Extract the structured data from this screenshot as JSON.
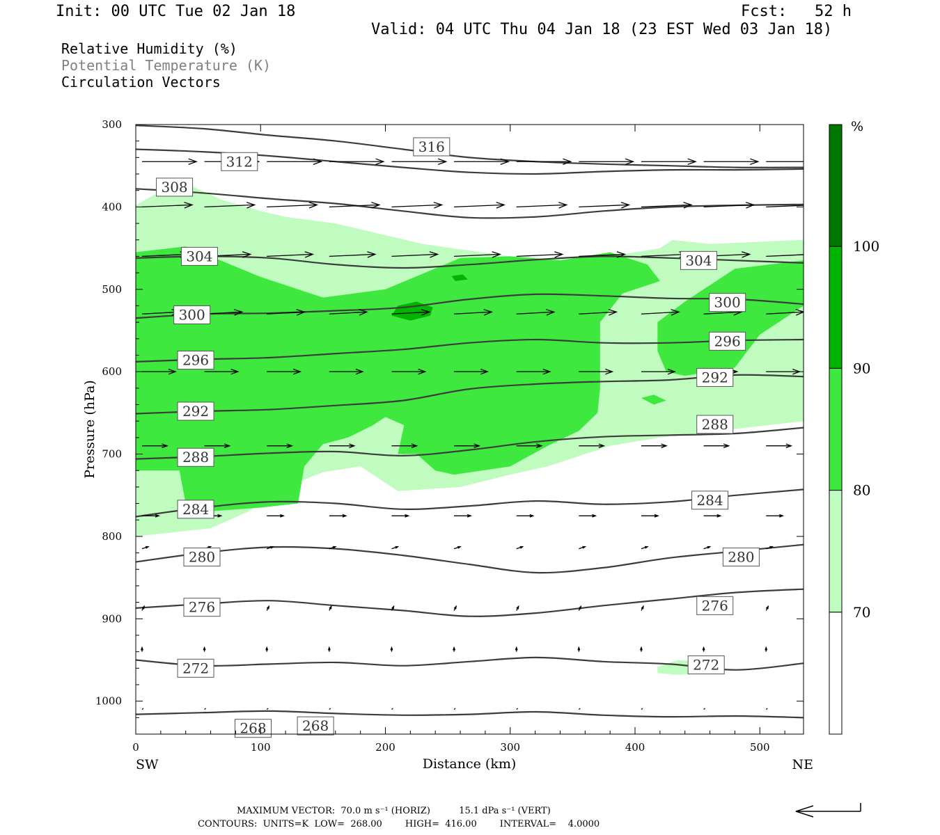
{
  "header": {
    "init": "Init: 00 UTC Tue 02 Jan 18",
    "fcst": "Fcst:   52 h",
    "valid": "Valid: 04 UTC Thu 04 Jan 18 (23 EST Wed 03 Jan 18)"
  },
  "legend": {
    "rh": "Relative Humidity (%)",
    "theta": "Potential Temperature (K)",
    "vectors": "Circulation Vectors"
  },
  "colors": {
    "rh70": "#c0fcc0",
    "rh80": "#3ee83e",
    "rh90": "#00b400",
    "rh100": "#007800",
    "contour": "#3c3c3c",
    "theta_legend": "#808080"
  },
  "chart_data": {
    "type": "cross-section",
    "xlabel": "Distance (km)",
    "ylabel": "Pressure (hPa)",
    "xlim": [
      0,
      535
    ],
    "ylim": [
      1040,
      300
    ],
    "x_ticks": [
      0,
      100,
      200,
      300,
      400,
      500
    ],
    "y_ticks": [
      300,
      400,
      500,
      600,
      700,
      800,
      900,
      1000
    ],
    "x_end_labels": {
      "left": "SW",
      "right": "NE"
    },
    "colorbar": {
      "unit": "%",
      "levels": [
        70,
        80,
        90,
        100
      ],
      "labels": [
        "100",
        "90",
        "80",
        "70"
      ]
    },
    "rh_regions": [
      {
        "level": 70,
        "points": [
          [
            0,
            398
          ],
          [
            15,
            385
          ],
          [
            45,
            375
          ],
          [
            70,
            392
          ],
          [
            100,
            405
          ],
          [
            120,
            412
          ],
          [
            160,
            420
          ],
          [
            230,
            445
          ],
          [
            300,
            460
          ],
          [
            360,
            465
          ],
          [
            420,
            450
          ],
          [
            430,
            440
          ],
          [
            460,
            445
          ],
          [
            535,
            440
          ],
          [
            535,
            660
          ],
          [
            420,
            680
          ],
          [
            380,
            690
          ],
          [
            330,
            715
          ],
          [
            300,
            725
          ],
          [
            260,
            740
          ],
          [
            210,
            745
          ],
          [
            180,
            715
          ],
          [
            150,
            722
          ],
          [
            120,
            740
          ],
          [
            90,
            770
          ],
          [
            60,
            790
          ],
          [
            30,
            795
          ],
          [
            0,
            800
          ]
        ]
      },
      {
        "level": 70,
        "points": [
          [
            418,
            958
          ],
          [
            435,
            950
          ],
          [
            460,
            953
          ],
          [
            460,
            965
          ],
          [
            435,
            968
          ],
          [
            418,
            966
          ]
        ]
      },
      {
        "level": 80,
        "points": [
          [
            0,
            455
          ],
          [
            40,
            448
          ],
          [
            60,
            460
          ],
          [
            100,
            485
          ],
          [
            150,
            510
          ],
          [
            200,
            500
          ],
          [
            260,
            462
          ],
          [
            300,
            460
          ],
          [
            340,
            465
          ],
          [
            380,
            455
          ],
          [
            410,
            470
          ],
          [
            420,
            490
          ],
          [
            390,
            505
          ],
          [
            372,
            540
          ],
          [
            372,
            620
          ],
          [
            370,
            650
          ],
          [
            355,
            672
          ],
          [
            330,
            690
          ],
          [
            300,
            715
          ],
          [
            255,
            725
          ],
          [
            240,
            720
          ],
          [
            225,
            700
          ],
          [
            210,
            700
          ],
          [
            215,
            665
          ],
          [
            200,
            655
          ],
          [
            190,
            665
          ],
          [
            170,
            680
          ],
          [
            150,
            688
          ],
          [
            135,
            715
          ],
          [
            130,
            760
          ],
          [
            100,
            765
          ],
          [
            55,
            770
          ],
          [
            40,
            760
          ],
          [
            35,
            720
          ],
          [
            0,
            720
          ]
        ]
      },
      {
        "level": 80,
        "points": [
          [
            418,
            540
          ],
          [
            440,
            515
          ],
          [
            480,
            475
          ],
          [
            535,
            465
          ],
          [
            535,
            520
          ],
          [
            500,
            555
          ],
          [
            480,
            595
          ],
          [
            440,
            605
          ],
          [
            425,
            600
          ],
          [
            418,
            575
          ]
        ]
      },
      {
        "level": 80,
        "points": [
          [
            405,
            632
          ],
          [
            415,
            628
          ],
          [
            425,
            635
          ],
          [
            415,
            640
          ]
        ]
      },
      {
        "level": 90,
        "points": [
          [
            210,
            520
          ],
          [
            225,
            515
          ],
          [
            238,
            522
          ],
          [
            236,
            532
          ],
          [
            220,
            538
          ],
          [
            205,
            532
          ]
        ]
      },
      {
        "level": 90,
        "points": [
          [
            253,
            484
          ],
          [
            262,
            482
          ],
          [
            266,
            488
          ],
          [
            256,
            490
          ]
        ]
      }
    ],
    "isentropes": [
      {
        "value": 268,
        "p": [
          1016,
          1014,
          1012,
          1015,
          1017,
          1016,
          1013,
          1017,
          1019,
          1018,
          1020
        ]
      },
      {
        "value": 272,
        "p": [
          950,
          957,
          955,
          953,
          957,
          952,
          947,
          952,
          955,
          962,
          954
        ]
      },
      {
        "value": 276,
        "p": [
          887,
          882,
          878,
          884,
          890,
          897,
          893,
          884,
          876,
          868,
          864
        ]
      },
      {
        "value": 280,
        "p": [
          831,
          820,
          813,
          815,
          823,
          834,
          844,
          838,
          826,
          818,
          810
        ]
      },
      {
        "value": 284,
        "p": [
          776,
          765,
          758,
          760,
          767,
          763,
          757,
          761,
          758,
          750,
          743
        ]
      },
      {
        "value": 288,
        "p": [
          706,
          703,
          699,
          697,
          702,
          695,
          685,
          679,
          677,
          675,
          668
        ]
      },
      {
        "value": 292,
        "p": [
          651,
          648,
          646,
          641,
          635,
          621,
          615,
          612,
          610,
          604,
          606
        ]
      },
      {
        "value": 296,
        "p": [
          588,
          585,
          583,
          578,
          573,
          565,
          561,
          565,
          565,
          562,
          561
        ]
      },
      {
        "value": 300,
        "p": [
          535,
          530,
          529,
          526,
          522,
          512,
          506,
          508,
          511,
          512,
          518
        ]
      },
      {
        "value": 304,
        "p": [
          462,
          460,
          462,
          470,
          474,
          470,
          464,
          460,
          462,
          465,
          468
        ]
      },
      {
        "value": 308,
        "p": [
          378,
          383,
          390,
          396,
          405,
          413,
          412,
          405,
          400,
          398,
          397
        ]
      },
      {
        "value": 312,
        "p": [
          330,
          333,
          338,
          345,
          352,
          358,
          360,
          357,
          355,
          355,
          354
        ]
      },
      {
        "value": 316,
        "p": [
          301,
          305,
          313,
          320,
          330,
          340,
          345,
          348,
          350,
          352,
          352
        ]
      }
    ],
    "isentrope_labels": [
      {
        "text": "316",
        "x": 237,
        "p": 327
      },
      {
        "text": "312",
        "x": 83,
        "p": 345
      },
      {
        "text": "308",
        "x": 31,
        "p": 376
      },
      {
        "text": "304",
        "x": 51,
        "p": 460
      },
      {
        "text": "304",
        "x": 451,
        "p": 465
      },
      {
        "text": "300",
        "x": 45,
        "p": 531
      },
      {
        "text": "300",
        "x": 474,
        "p": 516
      },
      {
        "text": "296",
        "x": 48,
        "p": 586
      },
      {
        "text": "296",
        "x": 474,
        "p": 563
      },
      {
        "text": "292",
        "x": 48,
        "p": 648
      },
      {
        "text": "292",
        "x": 464,
        "p": 607
      },
      {
        "text": "288",
        "x": 48,
        "p": 704
      },
      {
        "text": "288",
        "x": 464,
        "p": 664
      },
      {
        "text": "284",
        "x": 48,
        "p": 767
      },
      {
        "text": "284",
        "x": 460,
        "p": 756
      },
      {
        "text": "280",
        "x": 53,
        "p": 825
      },
      {
        "text": "280",
        "x": 485,
        "p": 825
      },
      {
        "text": "276",
        "x": 53,
        "p": 886
      },
      {
        "text": "276",
        "x": 464,
        "p": 884
      },
      {
        "text": "272",
        "x": 48,
        "p": 960
      },
      {
        "text": "272",
        "x": 457,
        "p": 956
      },
      {
        "text": "268",
        "x": 94,
        "p": 1033
      },
      {
        "text": "268",
        "x": 144,
        "p": 1030
      }
    ],
    "vector_rows": [
      {
        "p": 345,
        "u": 26,
        "w": 0
      },
      {
        "p": 400,
        "u": 24,
        "w": -1
      },
      {
        "p": 460,
        "u": 22,
        "w": -1
      },
      {
        "p": 530,
        "u": 18,
        "w": -1
      },
      {
        "p": 600,
        "u": 16,
        "w": 0
      },
      {
        "p": 690,
        "u": 12,
        "w": 0
      },
      {
        "p": 775,
        "u": 8,
        "w": 0
      },
      {
        "p": 815,
        "u": 3,
        "w": -1
      },
      {
        "p": 890,
        "u": 1,
        "w": -2
      },
      {
        "p": 940,
        "u": 0,
        "w": -2
      },
      {
        "p": 1010,
        "u": 0,
        "w": 0
      }
    ],
    "vector_x": [
      5,
      55,
      105,
      155,
      205,
      255,
      305,
      355,
      405,
      455,
      505
    ]
  },
  "footer": {
    "line1": "MAXIMUM VECTOR:  70.0 m s⁻¹ (HORIZ)          15.1 dPa s⁻¹ (VERT)",
    "line2": "CONTOURS:  UNITS=K  LOW=  268.00        HIGH=  416.00        INTERVAL=    4.0000"
  }
}
